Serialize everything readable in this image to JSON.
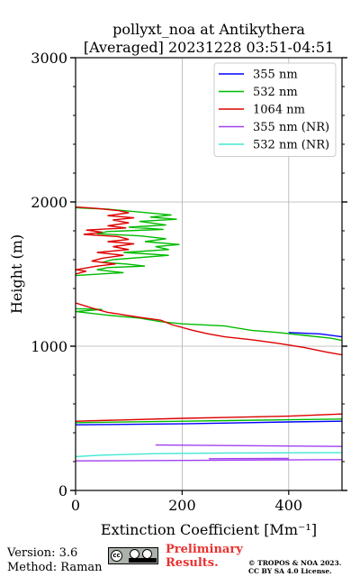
{
  "chart_data": {
    "type": "line",
    "title": "pollyxt_noa at Antikythera",
    "subtitle": "[Averaged] 20231228 03:51-04:51",
    "xlabel": "Extinction Coefficient [Mm⁻¹]",
    "ylabel": "Height (m)",
    "xlim": [
      0,
      500
    ],
    "ylim": [
      0,
      3000
    ],
    "xticks": [
      0,
      200,
      400
    ],
    "yticks": [
      0,
      1000,
      2000,
      3000
    ],
    "grid": true,
    "legend_position": "top-right",
    "series": [
      {
        "name": "355 nm",
        "color": "#0000ff",
        "points": [
          [
            400,
            1095
          ],
          [
            460,
            1085
          ],
          [
            500,
            1065
          ],
          null,
          [
            0,
            455
          ],
          [
            200,
            462
          ],
          [
            400,
            475
          ],
          [
            500,
            480
          ]
        ]
      },
      {
        "name": "532 nm",
        "color": "#00bb00",
        "points": [
          [
            0,
            1960
          ],
          [
            60,
            1950
          ],
          [
            120,
            1930
          ],
          [
            180,
            1910
          ],
          [
            140,
            1895
          ],
          [
            190,
            1880
          ],
          [
            120,
            1865
          ],
          [
            170,
            1840
          ],
          [
            100,
            1825
          ],
          [
            165,
            1810
          ],
          [
            60,
            1795
          ],
          [
            40,
            1780
          ],
          [
            120,
            1765
          ],
          [
            170,
            1745
          ],
          [
            130,
            1725
          ],
          [
            195,
            1705
          ],
          [
            150,
            1690
          ],
          [
            175,
            1670
          ],
          [
            90,
            1650
          ],
          [
            175,
            1630
          ],
          [
            70,
            1600
          ],
          [
            50,
            1580
          ],
          [
            95,
            1570
          ],
          [
            130,
            1555
          ],
          [
            60,
            1545
          ],
          [
            40,
            1530
          ],
          [
            90,
            1510
          ],
          [
            0,
            1490
          ],
          null,
          [
            0,
            1260
          ],
          [
            50,
            1255
          ],
          [
            0,
            1240
          ],
          [
            60,
            1215
          ],
          [
            120,
            1195
          ],
          [
            160,
            1170
          ],
          [
            200,
            1155
          ],
          [
            280,
            1140
          ],
          [
            330,
            1110
          ],
          [
            380,
            1095
          ],
          [
            430,
            1075
          ],
          [
            480,
            1055
          ],
          [
            500,
            1040
          ],
          null,
          [
            0,
            470
          ],
          [
            200,
            480
          ],
          [
            400,
            490
          ],
          [
            500,
            495
          ]
        ]
      },
      {
        "name": "1064 nm",
        "color": "#dd0000",
        "points": [
          [
            0,
            1965
          ],
          [
            40,
            1955
          ],
          [
            80,
            1940
          ],
          [
            100,
            1925
          ],
          [
            60,
            1905
          ],
          [
            110,
            1890
          ],
          [
            70,
            1875
          ],
          [
            100,
            1855
          ],
          [
            60,
            1835
          ],
          [
            95,
            1820
          ],
          [
            20,
            1805
          ],
          [
            50,
            1790
          ],
          [
            15,
            1775
          ],
          [
            80,
            1760
          ],
          [
            100,
            1740
          ],
          [
            60,
            1725
          ],
          [
            110,
            1710
          ],
          [
            70,
            1690
          ],
          [
            100,
            1670
          ],
          [
            40,
            1650
          ],
          [
            90,
            1630
          ],
          [
            50,
            1610
          ],
          [
            30,
            1590
          ],
          [
            75,
            1570
          ],
          [
            40,
            1555
          ],
          [
            0,
            1530
          ],
          [
            20,
            1520
          ],
          [
            0,
            1500
          ],
          null,
          [
            0,
            1300
          ],
          [
            30,
            1265
          ],
          [
            60,
            1235
          ],
          [
            120,
            1200
          ],
          [
            160,
            1180
          ],
          [
            180,
            1150
          ],
          [
            220,
            1110
          ],
          [
            250,
            1085
          ],
          [
            280,
            1065
          ],
          [
            330,
            1045
          ],
          [
            380,
            1020
          ],
          [
            430,
            990
          ],
          [
            470,
            960
          ],
          [
            500,
            940
          ],
          null,
          [
            0,
            480
          ],
          [
            200,
            500
          ],
          [
            400,
            515
          ],
          [
            500,
            530
          ]
        ]
      },
      {
        "name": "355 nm (NR)",
        "color": "#a040f0",
        "points": [
          [
            0,
            205
          ],
          [
            200,
            208
          ],
          [
            400,
            212
          ],
          [
            500,
            214
          ],
          null,
          [
            150,
            315
          ],
          [
            500,
            305
          ],
          null,
          [
            250,
            220
          ],
          [
            400,
            222
          ]
        ]
      },
      {
        "name": "532 nm (NR)",
        "color": "#40e8d0",
        "points": [
          [
            0,
            235
          ],
          [
            50,
            245
          ],
          [
            150,
            255
          ],
          [
            300,
            260
          ],
          [
            500,
            262
          ]
        ]
      }
    ]
  },
  "footer": {
    "version": "Version: 3.6",
    "method": "Method: Raman",
    "preliminary": "Preliminary",
    "results": "Results.",
    "copyright_1": "© TROPOS & NOA 2023.",
    "copyright_2": "CC BY SA 4.0 License."
  }
}
